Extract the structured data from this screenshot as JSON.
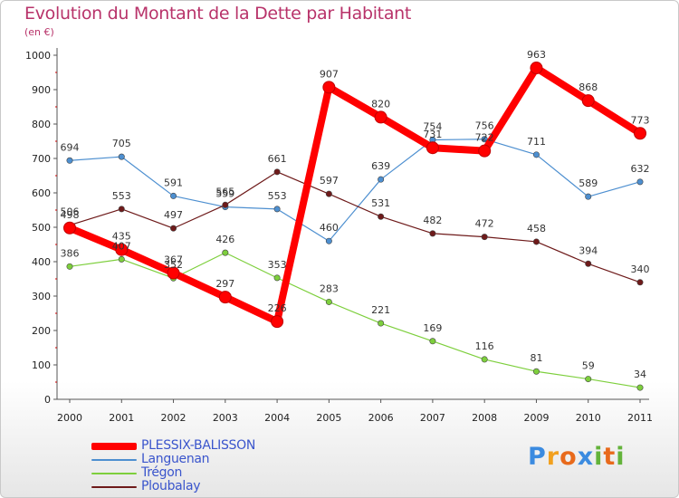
{
  "chart_data": {
    "type": "line",
    "title": "Evolution du Montant de la Dette par Habitant",
    "subtitle": "(en €)",
    "xlabel": "",
    "ylabel": "",
    "ylim": [
      0,
      1000
    ],
    "yticks": [
      0,
      100,
      200,
      300,
      400,
      500,
      600,
      700,
      800,
      900,
      1000
    ],
    "x": [
      "2000",
      "2001",
      "2002",
      "2003",
      "2004",
      "2005",
      "2006",
      "2007",
      "2008",
      "2009",
      "2010",
      "2011"
    ],
    "grid": false,
    "legend_position": "bottom-left",
    "series": [
      {
        "name": "PLESSIX-BALISSON",
        "color": "#ff0000",
        "emphasis": true,
        "values": [
          498,
          435,
          367,
          297,
          226,
          907,
          820,
          731,
          722,
          963,
          868,
          773
        ]
      },
      {
        "name": "Languenan",
        "color": "#4d8fd0",
        "values": [
          694,
          705,
          591,
          559,
          553,
          460,
          639,
          754,
          756,
          711,
          589,
          632
        ]
      },
      {
        "name": "Trégon",
        "color": "#7dcf3c",
        "values": [
          386,
          407,
          352,
          426,
          353,
          283,
          221,
          169,
          116,
          81,
          59,
          34
        ]
      },
      {
        "name": "Ploubalay",
        "color": "#6e1a1a",
        "values": [
          506,
          553,
          497,
          565,
          661,
          597,
          531,
          482,
          472,
          458,
          394,
          340
        ]
      }
    ]
  },
  "brand": {
    "letters": [
      "P",
      "r",
      "o",
      "x",
      "i",
      "t",
      "i"
    ],
    "colors": [
      "#3b8be0",
      "#f2a11f",
      "#e86a1c",
      "#3b8be0",
      "#63b33a",
      "#e86a1c",
      "#63b33a"
    ]
  }
}
